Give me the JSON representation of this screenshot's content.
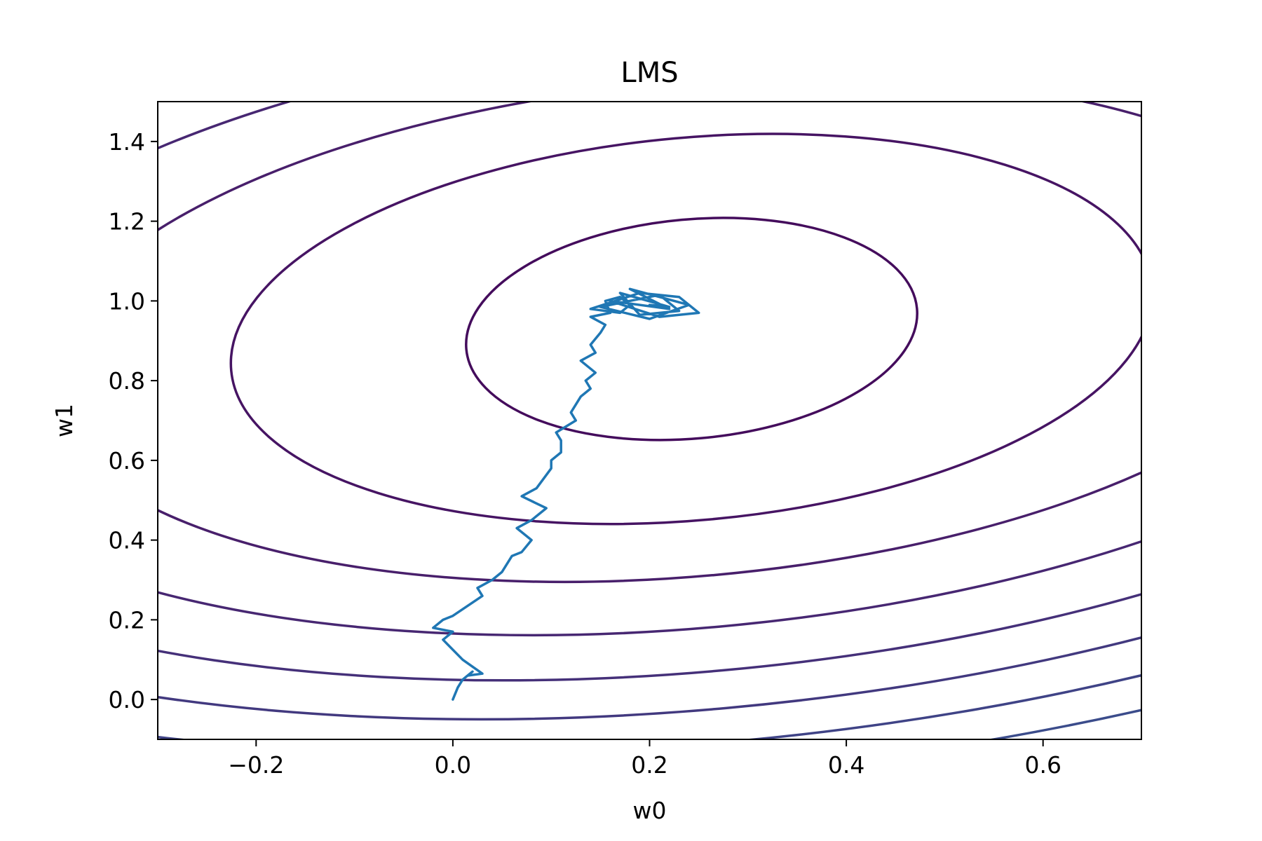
{
  "chart_data": {
    "type": "line",
    "title": "LMS",
    "xlabel": "w0",
    "ylabel": "w1",
    "xlim": [
      -0.3,
      0.7
    ],
    "ylim": [
      -0.1,
      1.5
    ],
    "grid": false,
    "x_ticks": [
      {
        "value": -0.2,
        "label": "−0.2"
      },
      {
        "value": 0.0,
        "label": "0.0"
      },
      {
        "value": 0.2,
        "label": "0.2"
      },
      {
        "value": 0.4,
        "label": "0.4"
      },
      {
        "value": 0.6,
        "label": "0.6"
      }
    ],
    "y_ticks": [
      {
        "value": 0.0,
        "label": "0.0"
      },
      {
        "value": 0.2,
        "label": "0.2"
      },
      {
        "value": 0.4,
        "label": "0.4"
      },
      {
        "value": 0.6,
        "label": "0.6"
      },
      {
        "value": 0.8,
        "label": "0.8"
      },
      {
        "value": 1.0,
        "label": "1.0"
      },
      {
        "value": 1.2,
        "label": "1.2"
      },
      {
        "value": 1.4,
        "label": "1.4"
      }
    ],
    "contours": {
      "colormap": "viridis",
      "center": [
        0.2,
        1.0
      ],
      "levels": [
        {
          "rx": 0.23,
          "ry": 0.275,
          "color": "#440c5c"
        },
        {
          "rx": 0.47,
          "ry": 0.48,
          "color": "#461463"
        },
        {
          "rx": 0.66,
          "ry": 0.62,
          "color": "#481f6b"
        },
        {
          "rx": 0.81,
          "ry": 0.75,
          "color": "#472772"
        },
        {
          "rx": 0.94,
          "ry": 0.86,
          "color": "#453079"
        },
        {
          "rx": 1.05,
          "ry": 0.955,
          "color": "#42397f"
        },
        {
          "rx": 1.15,
          "ry": 1.04,
          "color": "#3f4386"
        },
        {
          "rx": 1.24,
          "ry": 1.12,
          "color": "#3b4c8b"
        }
      ],
      "line_color_trajectory": "#1f77b4"
    },
    "series": [
      {
        "color": "#1f77b4",
        "x": [
          0.0,
          0.005,
          0.01,
          0.015,
          0.02,
          0.015,
          0.03,
          0.01,
          -0.01,
          0.0,
          -0.02,
          -0.01,
          0.0,
          0.03,
          0.025,
          0.04,
          0.05,
          0.06,
          0.07,
          0.08,
          0.065,
          0.08,
          0.095,
          0.07,
          0.085,
          0.1,
          0.1,
          0.11,
          0.11,
          0.105,
          0.125,
          0.12,
          0.13,
          0.14,
          0.135,
          0.145,
          0.13,
          0.145,
          0.14,
          0.15,
          0.155,
          0.14,
          0.16,
          0.155,
          0.17,
          0.18,
          0.17,
          0.14,
          0.19,
          0.23,
          0.25,
          0.21,
          0.16,
          0.22,
          0.18,
          0.24,
          0.2,
          0.15,
          0.21,
          0.23,
          0.19,
          0.17,
          0.22,
          0.2
        ],
        "y": [
          0.0,
          0.03,
          0.05,
          0.06,
          0.07,
          0.06,
          0.065,
          0.1,
          0.15,
          0.17,
          0.18,
          0.2,
          0.21,
          0.26,
          0.28,
          0.3,
          0.32,
          0.36,
          0.37,
          0.4,
          0.43,
          0.45,
          0.48,
          0.51,
          0.53,
          0.58,
          0.6,
          0.62,
          0.65,
          0.67,
          0.7,
          0.72,
          0.76,
          0.78,
          0.8,
          0.82,
          0.85,
          0.87,
          0.89,
          0.92,
          0.94,
          0.96,
          0.97,
          1.0,
          1.01,
          0.99,
          0.97,
          0.98,
          1.02,
          1.01,
          0.97,
          0.96,
          1.0,
          0.98,
          1.03,
          0.99,
          0.955,
          0.985,
          1.015,
          0.975,
          0.965,
          1.02,
          0.985,
          0.99
        ]
      }
    ]
  }
}
